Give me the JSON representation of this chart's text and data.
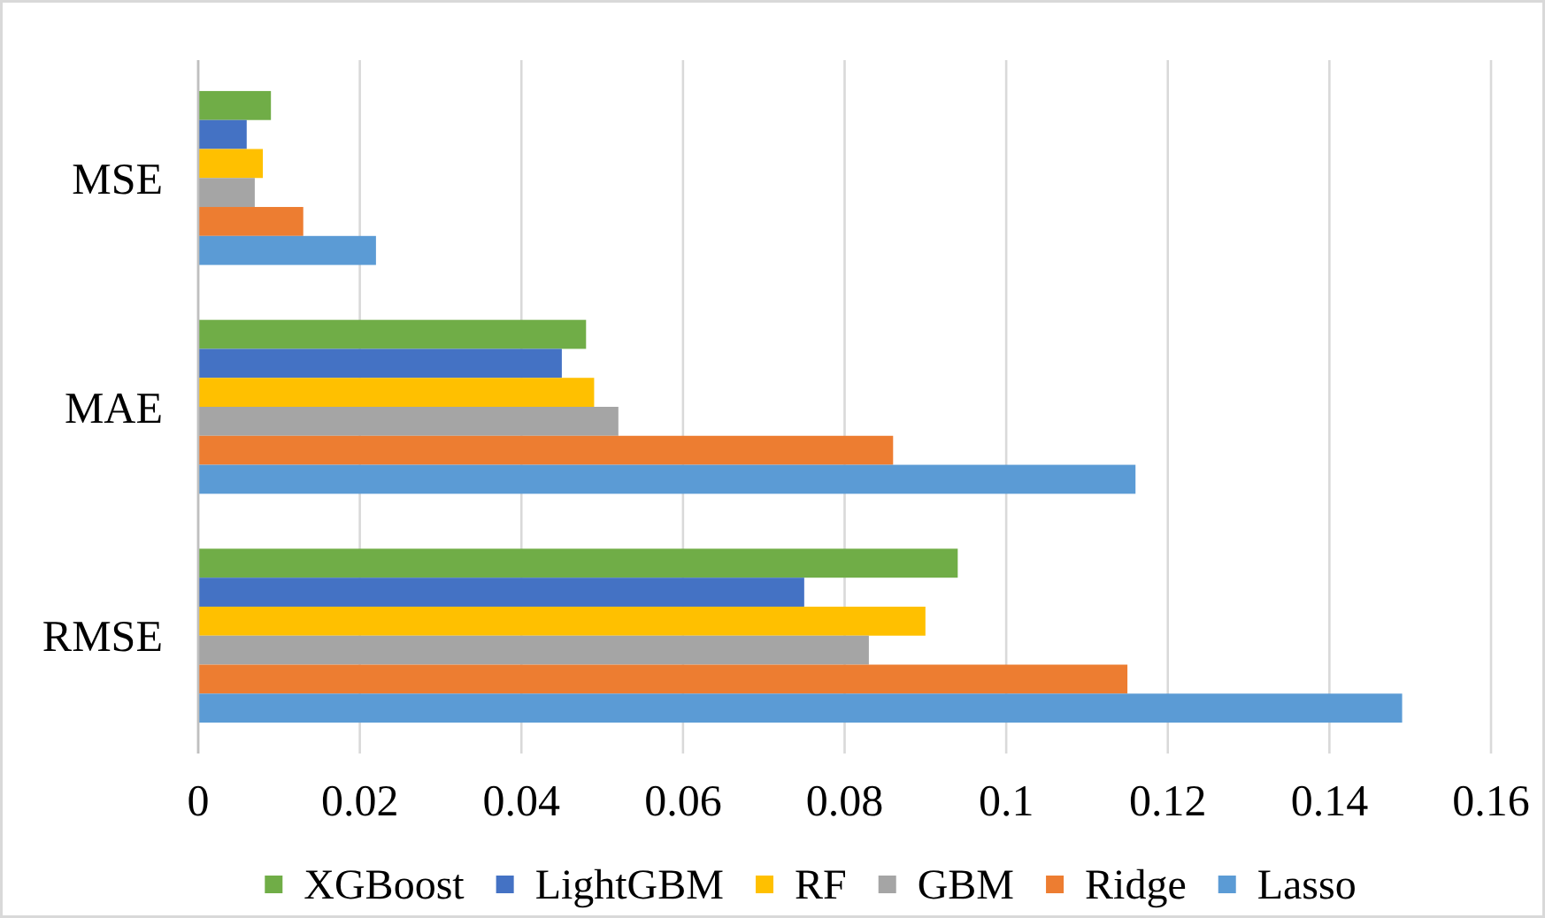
{
  "chart_data": {
    "type": "bar",
    "orientation": "horizontal",
    "categories": [
      "MSE",
      "MAE",
      "RMSE"
    ],
    "series": [
      {
        "name": "XGBoost",
        "color": "#70ad47",
        "values": [
          0.009,
          0.048,
          0.094
        ]
      },
      {
        "name": "LightGBM",
        "color": "#4472c4",
        "values": [
          0.006,
          0.045,
          0.075
        ]
      },
      {
        "name": "RF",
        "color": "#ffc000",
        "values": [
          0.008,
          0.049,
          0.09
        ]
      },
      {
        "name": "GBM",
        "color": "#a5a5a5",
        "values": [
          0.007,
          0.052,
          0.083
        ]
      },
      {
        "name": "Ridge",
        "color": "#ed7d31",
        "values": [
          0.013,
          0.086,
          0.115
        ]
      },
      {
        "name": "Lasso",
        "color": "#5b9bd5",
        "values": [
          0.022,
          0.116,
          0.149
        ]
      }
    ],
    "xlim": [
      0,
      0.16
    ],
    "xticks": [
      0,
      0.02,
      0.04,
      0.06,
      0.08,
      0.1,
      0.12,
      0.14,
      0.16
    ],
    "grid": "x",
    "legend": "bottom"
  }
}
